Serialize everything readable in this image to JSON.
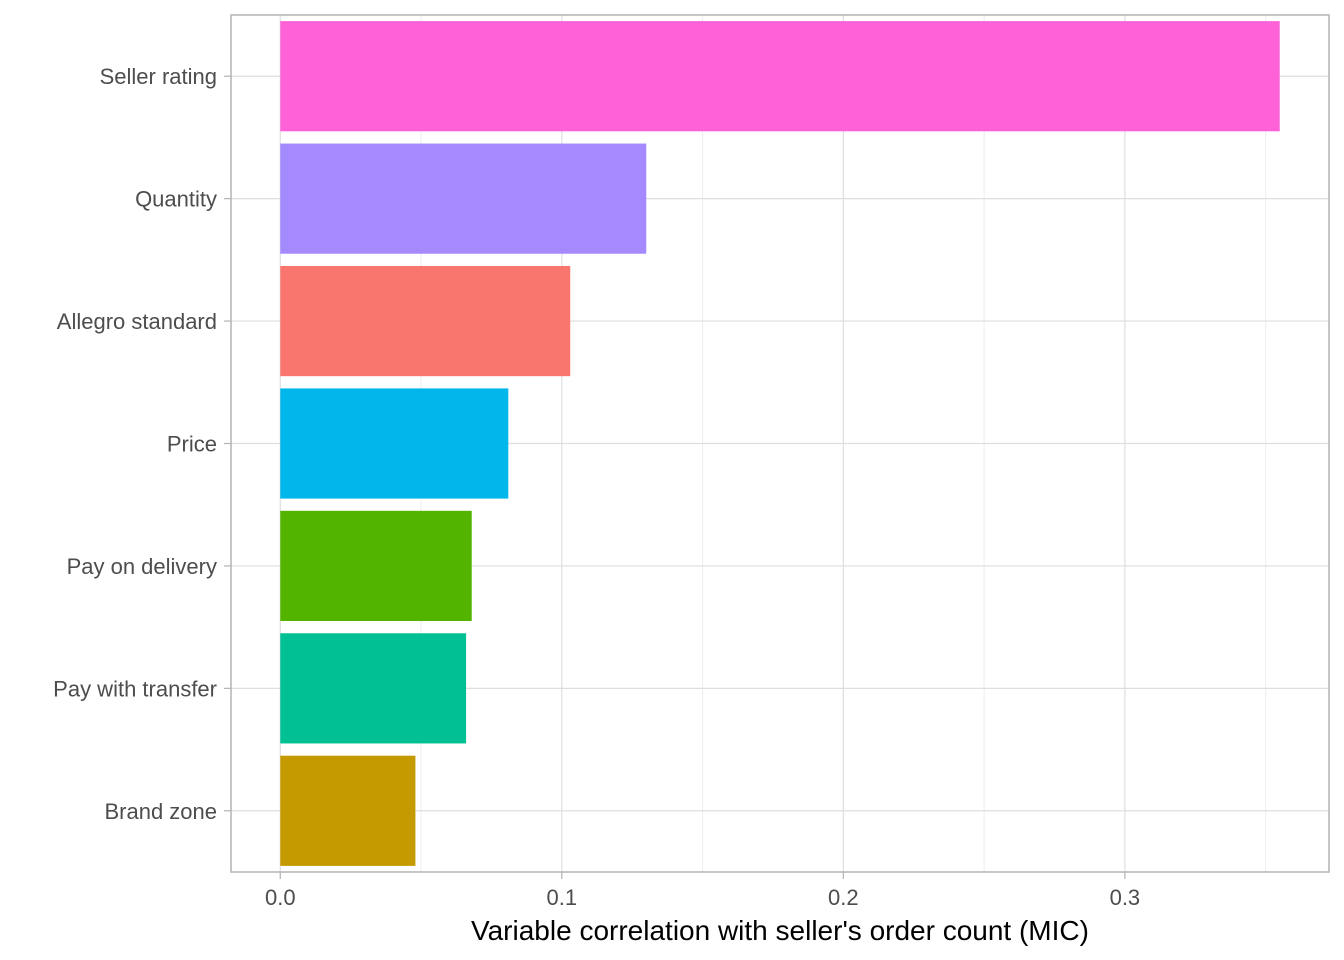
{
  "chart_data": {
    "type": "bar",
    "orientation": "horizontal",
    "categories": [
      "Seller rating",
      "Quantity",
      "Allegro standard",
      "Price",
      "Pay on delivery",
      "Pay with transfer",
      "Brand zone"
    ],
    "values": [
      0.355,
      0.13,
      0.103,
      0.081,
      0.068,
      0.066,
      0.048
    ],
    "colors": [
      "#FF61D8",
      "#A58AFF",
      "#F8766D",
      "#00B6EB",
      "#53B400",
      "#00C094",
      "#C49A00"
    ],
    "title": "",
    "xlabel": "Variable correlation with seller's order count (MIC)",
    "ylabel": "",
    "xlim": [
      -0.0175,
      0.3725
    ],
    "xticks": [
      0.0,
      0.1,
      0.2,
      0.3
    ],
    "xtick_labels": [
      "0.0",
      "0.1",
      "0.2",
      "0.3"
    ],
    "grid": true,
    "legend": "none",
    "theme": "light"
  }
}
